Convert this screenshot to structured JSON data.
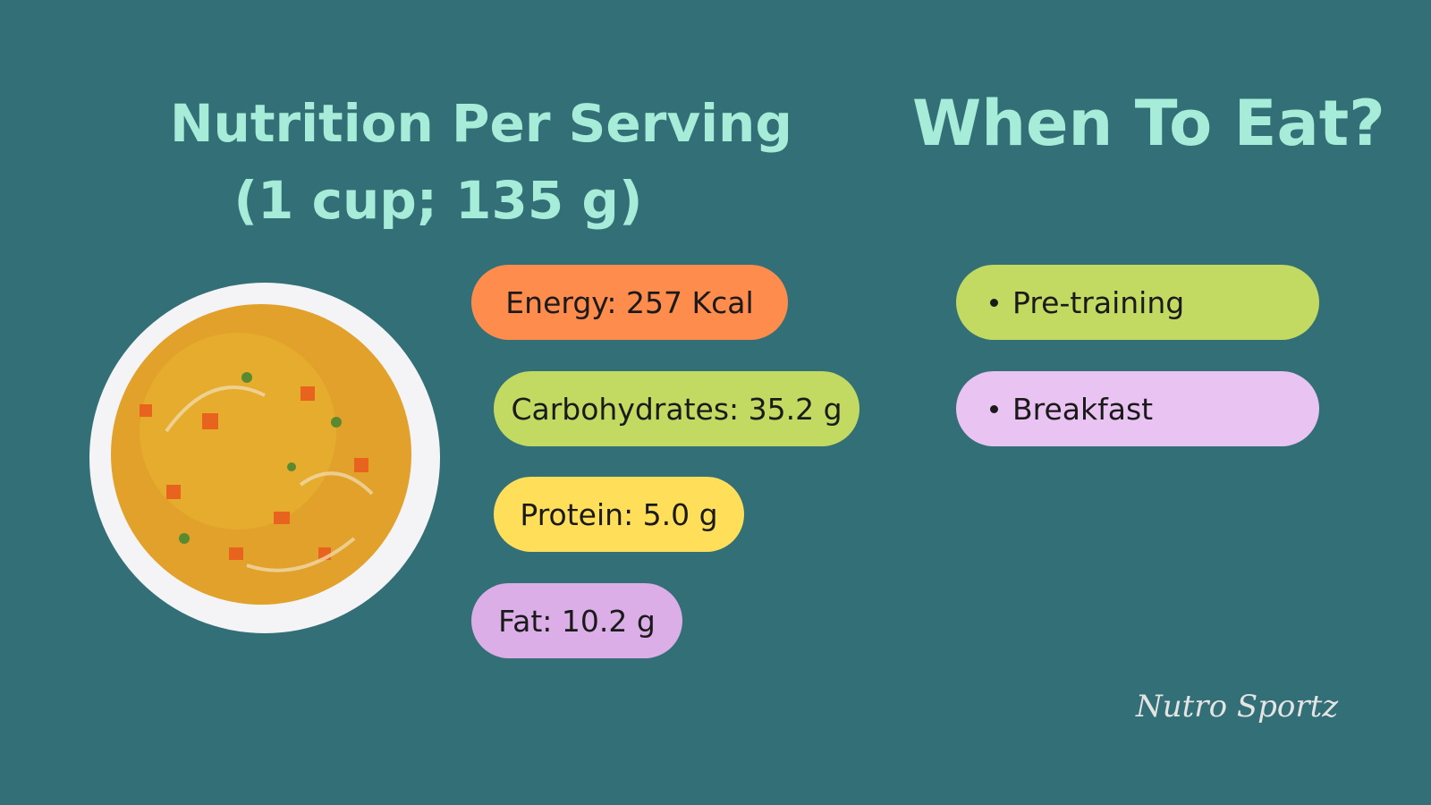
{
  "nutrition": {
    "title_lines": [
      "Nutrition Per Serving",
      "(1 cup; 135 g)"
    ],
    "items": [
      "Energy: 257 Kcal",
      "Carbohydrates: 35.2 g",
      "Protein: 5.0 g",
      "Fat: 10.2 g"
    ]
  },
  "when": {
    "title": "When To Eat?",
    "items": [
      "Pre-training",
      "Breakfast"
    ]
  },
  "brand": "Nutro Sportz"
}
